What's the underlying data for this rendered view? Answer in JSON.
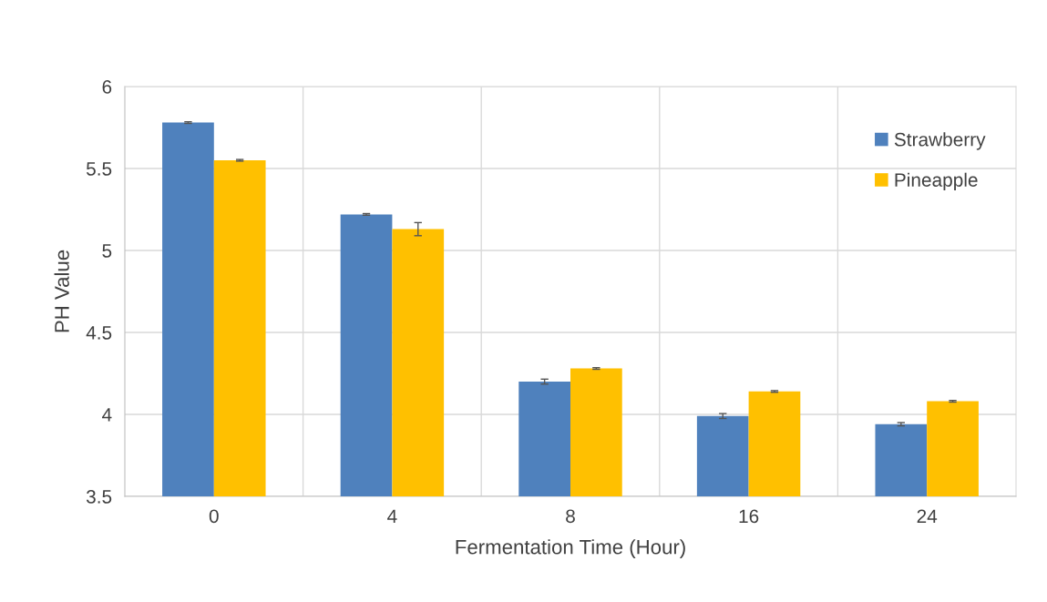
{
  "chart_data": {
    "type": "bar",
    "xlabel": "Fermentation Time (Hour)",
    "ylabel": "PH Value",
    "categories": [
      "0",
      "4",
      "8",
      "16",
      "24"
    ],
    "series": [
      {
        "name": "Strawberry",
        "color": "#4f81bd",
        "values": [
          5.78,
          5.22,
          4.2,
          3.99,
          3.94
        ],
        "errors": [
          0.005,
          0.005,
          0.015,
          0.015,
          0.01
        ]
      },
      {
        "name": "Pineapple",
        "color": "#ffc000",
        "values": [
          5.55,
          5.13,
          4.28,
          4.14,
          4.08
        ],
        "errors": [
          0.005,
          0.04,
          0.005,
          0.005,
          0.005
        ]
      }
    ],
    "ylim": [
      3.5,
      6
    ],
    "yticks": [
      3.5,
      4,
      4.5,
      5,
      5.5,
      6
    ],
    "grid": true,
    "legend": "top right"
  }
}
